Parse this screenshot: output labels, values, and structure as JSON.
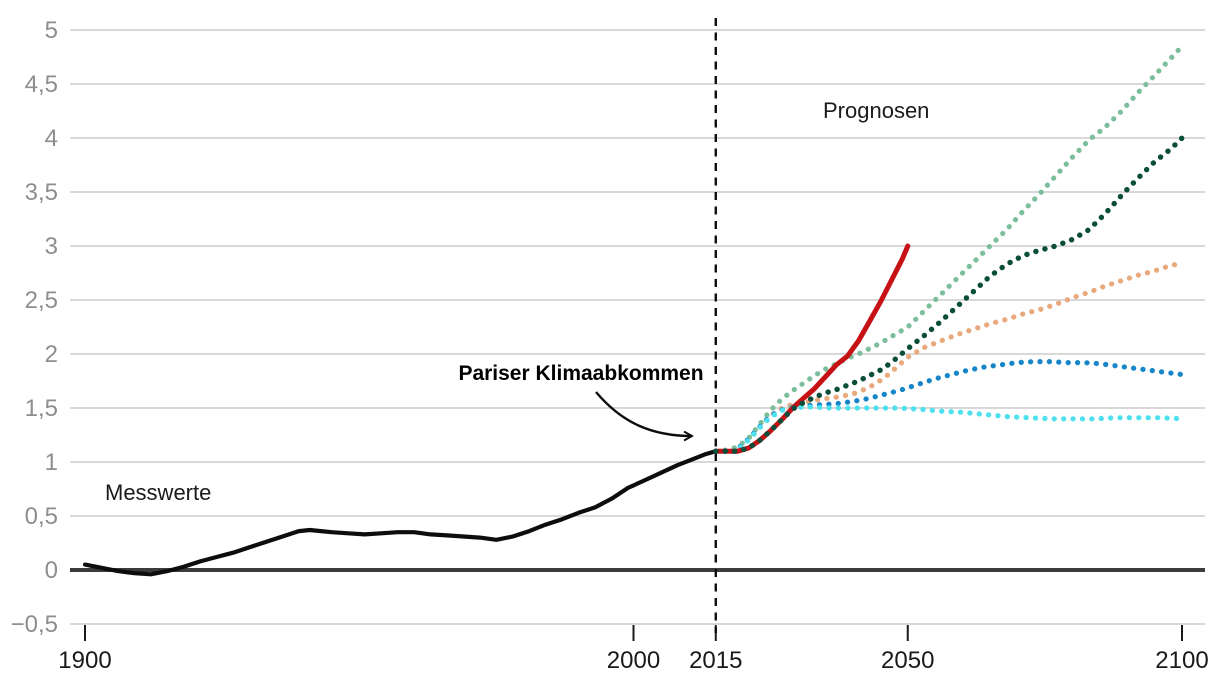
{
  "chart_data": {
    "type": "line",
    "title": "",
    "xlabel": "",
    "ylabel": "",
    "grid": true,
    "legend": "none",
    "xlim": [
      1900,
      2100
    ],
    "ylim": [
      -0.5,
      5
    ],
    "x_axis": {
      "ticks": [
        {
          "value": 1900,
          "label": "1900"
        },
        {
          "value": 2000,
          "label": "2000"
        },
        {
          "value": 2015,
          "label": "2015"
        },
        {
          "value": 2050,
          "label": "2050"
        },
        {
          "value": 2100,
          "label": "2100"
        }
      ]
    },
    "y_axis": {
      "ticks": [
        {
          "value": 5,
          "label": "5"
        },
        {
          "value": 4.5,
          "label": "4,5"
        },
        {
          "value": 4,
          "label": "4"
        },
        {
          "value": 3.5,
          "label": "3,5"
        },
        {
          "value": 3,
          "label": "3"
        },
        {
          "value": 2.5,
          "label": "2,5"
        },
        {
          "value": 2,
          "label": "2"
        },
        {
          "value": 1.5,
          "label": "1,5"
        },
        {
          "value": 1,
          "label": "1"
        },
        {
          "value": 0.5,
          "label": "0,5"
        },
        {
          "value": 0,
          "label": "0",
          "zero_baseline": true
        },
        {
          "value": -0.5,
          "label": "−0,5"
        }
      ]
    },
    "event_line": {
      "year": 2015,
      "style": "dashed",
      "color": "#0d0d0d"
    },
    "annotations": {
      "measured_label": "Messwerte",
      "forecast_label": "Prognosen",
      "event_label": "Pariser Klimaabkommen"
    },
    "layout_colors": {
      "background": "#ffffff",
      "gridline": "#d8d8d8",
      "zero_line": "#3c3c3c",
      "y_label_text": "#8e8e8e",
      "x_label_text": "#1a1a1a"
    },
    "series": [
      {
        "id": "messwerte",
        "name": "Messwerte",
        "color": "#0d0d0d",
        "style": "solid",
        "width": 4.2,
        "points": [
          [
            1900,
            0.05
          ],
          [
            1903,
            0.02
          ],
          [
            1906,
            -0.01
          ],
          [
            1909,
            -0.03
          ],
          [
            1912,
            -0.04
          ],
          [
            1915,
            -0.01
          ],
          [
            1918,
            0.03
          ],
          [
            1921,
            0.08
          ],
          [
            1924,
            0.12
          ],
          [
            1927,
            0.16
          ],
          [
            1930,
            0.21
          ],
          [
            1933,
            0.26
          ],
          [
            1936,
            0.31
          ],
          [
            1939,
            0.36
          ],
          [
            1941,
            0.37
          ],
          [
            1943,
            0.36
          ],
          [
            1945,
            0.35
          ],
          [
            1948,
            0.34
          ],
          [
            1951,
            0.33
          ],
          [
            1954,
            0.34
          ],
          [
            1957,
            0.35
          ],
          [
            1960,
            0.35
          ],
          [
            1963,
            0.33
          ],
          [
            1966,
            0.32
          ],
          [
            1969,
            0.31
          ],
          [
            1972,
            0.3
          ],
          [
            1975,
            0.28
          ],
          [
            1978,
            0.31
          ],
          [
            1981,
            0.36
          ],
          [
            1984,
            0.42
          ],
          [
            1987,
            0.47
          ],
          [
            1990,
            0.53
          ],
          [
            1993,
            0.58
          ],
          [
            1996,
            0.66
          ],
          [
            1999,
            0.76
          ],
          [
            2002,
            0.83
          ],
          [
            2005,
            0.9
          ],
          [
            2008,
            0.97
          ],
          [
            2011,
            1.03
          ],
          [
            2013,
            1.07
          ],
          [
            2015,
            1.1
          ]
        ]
      },
      {
        "id": "prognose-hellgruen",
        "name": "Prognose (hellgrün gepunktet)",
        "color": "#7cbe9c",
        "style": "dotted",
        "width": 5.2,
        "points": [
          [
            2015,
            1.1
          ],
          [
            2017,
            1.11
          ],
          [
            2019,
            1.14
          ],
          [
            2021,
            1.22
          ],
          [
            2023,
            1.35
          ],
          [
            2025,
            1.48
          ],
          [
            2027,
            1.58
          ],
          [
            2029,
            1.66
          ],
          [
            2031,
            1.73
          ],
          [
            2033,
            1.8
          ],
          [
            2035,
            1.86
          ],
          [
            2037,
            1.91
          ],
          [
            2039,
            1.96
          ],
          [
            2041,
            2.0
          ],
          [
            2043,
            2.05
          ],
          [
            2045,
            2.1
          ],
          [
            2047,
            2.16
          ],
          [
            2050,
            2.25
          ],
          [
            2053,
            2.4
          ],
          [
            2056,
            2.55
          ],
          [
            2059,
            2.7
          ],
          [
            2062,
            2.85
          ],
          [
            2065,
            3.0
          ],
          [
            2068,
            3.15
          ],
          [
            2071,
            3.32
          ],
          [
            2074,
            3.48
          ],
          [
            2077,
            3.65
          ],
          [
            2080,
            3.82
          ],
          [
            2083,
            3.98
          ],
          [
            2086,
            4.1
          ],
          [
            2089,
            4.25
          ],
          [
            2092,
            4.42
          ],
          [
            2095,
            4.58
          ],
          [
            2098,
            4.74
          ],
          [
            2100,
            4.85
          ]
        ]
      },
      {
        "id": "prognose-orange",
        "name": "Prognose (orange gepunktet)",
        "color": "#e8a97c",
        "style": "dotted",
        "width": 5.2,
        "points": [
          [
            2018,
            1.1
          ],
          [
            2020,
            1.15
          ],
          [
            2022,
            1.26
          ],
          [
            2024,
            1.38
          ],
          [
            2026,
            1.47
          ],
          [
            2028,
            1.52
          ],
          [
            2031,
            1.55
          ],
          [
            2034,
            1.58
          ],
          [
            2037,
            1.6
          ],
          [
            2040,
            1.63
          ],
          [
            2042,
            1.67
          ],
          [
            2044,
            1.72
          ],
          [
            2046,
            1.79
          ],
          [
            2048,
            1.88
          ],
          [
            2050,
            1.97
          ],
          [
            2053,
            2.06
          ],
          [
            2056,
            2.12
          ],
          [
            2059,
            2.18
          ],
          [
            2062,
            2.23
          ],
          [
            2065,
            2.28
          ],
          [
            2068,
            2.32
          ],
          [
            2071,
            2.37
          ],
          [
            2074,
            2.41
          ],
          [
            2077,
            2.46
          ],
          [
            2080,
            2.52
          ],
          [
            2083,
            2.57
          ],
          [
            2086,
            2.63
          ],
          [
            2089,
            2.68
          ],
          [
            2092,
            2.73
          ],
          [
            2095,
            2.77
          ],
          [
            2098,
            2.82
          ],
          [
            2100,
            2.84
          ]
        ]
      },
      {
        "id": "prognose-blau",
        "name": "Prognose (blau gepunktet)",
        "color": "#1686c8",
        "style": "dotted",
        "width": 5.2,
        "points": [
          [
            2018,
            1.1
          ],
          [
            2020,
            1.16
          ],
          [
            2022,
            1.27
          ],
          [
            2024,
            1.38
          ],
          [
            2026,
            1.46
          ],
          [
            2028,
            1.5
          ],
          [
            2031,
            1.52
          ],
          [
            2034,
            1.53
          ],
          [
            2037,
            1.54
          ],
          [
            2040,
            1.56
          ],
          [
            2043,
            1.59
          ],
          [
            2046,
            1.63
          ],
          [
            2049,
            1.67
          ],
          [
            2052,
            1.72
          ],
          [
            2055,
            1.77
          ],
          [
            2058,
            1.81
          ],
          [
            2061,
            1.85
          ],
          [
            2064,
            1.88
          ],
          [
            2067,
            1.9
          ],
          [
            2070,
            1.92
          ],
          [
            2073,
            1.93
          ],
          [
            2076,
            1.93
          ],
          [
            2079,
            1.92
          ],
          [
            2082,
            1.92
          ],
          [
            2085,
            1.91
          ],
          [
            2088,
            1.89
          ],
          [
            2091,
            1.87
          ],
          [
            2094,
            1.85
          ],
          [
            2097,
            1.83
          ],
          [
            2100,
            1.81
          ]
        ]
      },
      {
        "id": "prognose-cyan",
        "name": "Prognose (türkis gepunktet)",
        "color": "#4de0ee",
        "style": "dotted",
        "width": 5.2,
        "points": [
          [
            2018,
            1.1
          ],
          [
            2020,
            1.15
          ],
          [
            2022,
            1.26
          ],
          [
            2024,
            1.37
          ],
          [
            2026,
            1.45
          ],
          [
            2028,
            1.5
          ],
          [
            2032,
            1.51
          ],
          [
            2036,
            1.5
          ],
          [
            2040,
            1.5
          ],
          [
            2044,
            1.5
          ],
          [
            2048,
            1.5
          ],
          [
            2052,
            1.49
          ],
          [
            2056,
            1.47
          ],
          [
            2060,
            1.46
          ],
          [
            2064,
            1.44
          ],
          [
            2068,
            1.42
          ],
          [
            2072,
            1.41
          ],
          [
            2076,
            1.4
          ],
          [
            2080,
            1.4
          ],
          [
            2084,
            1.4
          ],
          [
            2088,
            1.41
          ],
          [
            2092,
            1.41
          ],
          [
            2096,
            1.41
          ],
          [
            2100,
            1.4
          ]
        ]
      },
      {
        "id": "prognose-rot",
        "name": "Prognose (rot durchgezogen)",
        "color": "#c61115",
        "style": "solid",
        "width": 5,
        "points": [
          [
            2015,
            1.1
          ],
          [
            2017,
            1.1
          ],
          [
            2019,
            1.1
          ],
          [
            2021,
            1.13
          ],
          [
            2023,
            1.2
          ],
          [
            2025,
            1.29
          ],
          [
            2027,
            1.39
          ],
          [
            2029,
            1.5
          ],
          [
            2031,
            1.59
          ],
          [
            2033,
            1.68
          ],
          [
            2035,
            1.79
          ],
          [
            2037,
            1.9
          ],
          [
            2039,
            1.98
          ],
          [
            2041,
            2.12
          ],
          [
            2043,
            2.3
          ],
          [
            2045,
            2.48
          ],
          [
            2047,
            2.68
          ],
          [
            2049,
            2.88
          ],
          [
            2050,
            3.0
          ]
        ]
      },
      {
        "id": "prognose-dunkelgruen",
        "name": "Prognose (dunkelgrün gepunktet)",
        "color": "#0a4d3b",
        "style": "dotted",
        "width": 5.4,
        "points": [
          [
            2015,
            1.1
          ],
          [
            2017,
            1.1
          ],
          [
            2019,
            1.1
          ],
          [
            2021,
            1.13
          ],
          [
            2023,
            1.2
          ],
          [
            2025,
            1.29
          ],
          [
            2027,
            1.39
          ],
          [
            2029,
            1.49
          ],
          [
            2031,
            1.55
          ],
          [
            2033,
            1.6
          ],
          [
            2035,
            1.64
          ],
          [
            2037,
            1.67
          ],
          [
            2039,
            1.71
          ],
          [
            2041,
            1.75
          ],
          [
            2043,
            1.8
          ],
          [
            2045,
            1.85
          ],
          [
            2047,
            1.92
          ],
          [
            2050,
            2.05
          ],
          [
            2053,
            2.17
          ],
          [
            2056,
            2.3
          ],
          [
            2059,
            2.44
          ],
          [
            2062,
            2.58
          ],
          [
            2065,
            2.72
          ],
          [
            2068,
            2.83
          ],
          [
            2071,
            2.91
          ],
          [
            2074,
            2.96
          ],
          [
            2077,
            3.0
          ],
          [
            2080,
            3.06
          ],
          [
            2083,
            3.15
          ],
          [
            2086,
            3.3
          ],
          [
            2089,
            3.47
          ],
          [
            2092,
            3.63
          ],
          [
            2095,
            3.78
          ],
          [
            2098,
            3.9
          ],
          [
            2100,
            4.0
          ]
        ]
      }
    ]
  }
}
